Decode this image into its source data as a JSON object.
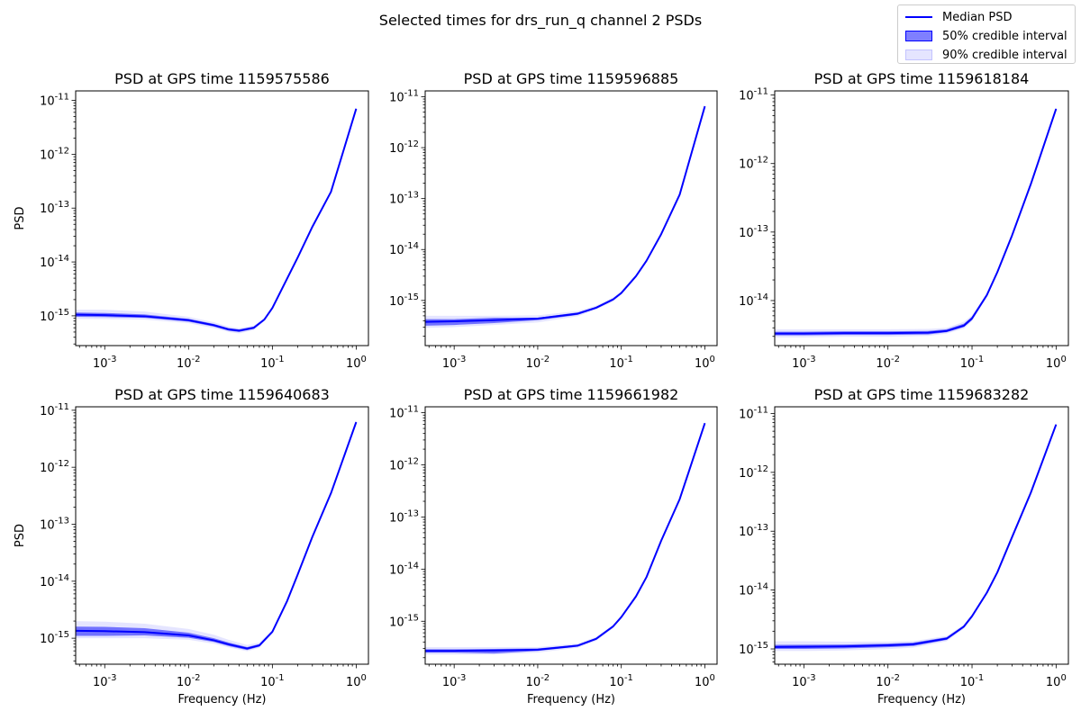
{
  "figure": {
    "suptitle": "Selected times for drs_run_q channel 2 PSDs"
  },
  "legend": {
    "position": "top-right",
    "entries": [
      {
        "label": "Median PSD",
        "kind": "line",
        "color": "#0000ff"
      },
      {
        "label": "50% credible interval",
        "kind": "band",
        "color": "#0000ff",
        "opacity": 0.5
      },
      {
        "label": "90% credible interval",
        "kind": "band",
        "color": "#0000ff",
        "opacity": 0.1
      }
    ]
  },
  "chart_data": [
    {
      "type": "line",
      "title": "PSD at GPS time 1159575586",
      "xlabel": "",
      "ylabel": "PSD",
      "xscale": "log",
      "yscale": "log",
      "xlim": [
        0.00045,
        1.4
      ],
      "ylim": [
        2.8e-16,
        1.5e-11
      ],
      "xticks": [
        "10^-3",
        "10^-2",
        "10^-1",
        "10^0"
      ],
      "yticks": [
        "10^-15",
        "10^-14",
        "10^-13",
        "10^-12",
        "10^-11"
      ],
      "x": [
        0.00045,
        0.001,
        0.003,
        0.01,
        0.02,
        0.03,
        0.04,
        0.06,
        0.08,
        0.1,
        0.2,
        0.3,
        0.5,
        1.0
      ],
      "median": [
        1.05e-15,
        1.03e-15,
        9.8e-16,
        8.3e-16,
        6.7e-16,
        5.6e-16,
        5.3e-16,
        6e-16,
        8.5e-16,
        1.4e-15,
        1.2e-14,
        4.5e-14,
        2e-13,
        7e-12
      ],
      "band50_low": [
        9.6e-16,
        9.5e-16,
        9.2e-16,
        7.8e-16,
        6.3e-16,
        5.3e-16,
        5e-16,
        5.7e-16,
        8.2e-16,
        1.35e-15,
        1.16e-14,
        4.4e-14,
        1.95e-13,
        6.8e-12
      ],
      "band50_high": [
        1.15e-15,
        1.13e-15,
        1.06e-15,
        8.8e-16,
        7.1e-16,
        5.9e-16,
        5.6e-16,
        6.3e-16,
        8.8e-16,
        1.45e-15,
        1.24e-14,
        4.6e-14,
        2.05e-13,
        7.2e-12
      ],
      "band90_low": [
        8.8e-16,
        8.7e-16,
        8.5e-16,
        7.3e-16,
        5.9e-16,
        5e-16,
        4.7e-16,
        5.4e-16,
        7.9e-16,
        1.3e-15,
        1.12e-14,
        4.3e-14,
        1.9e-13,
        6.6e-12
      ],
      "band90_high": [
        1.3e-15,
        1.3e-15,
        1.2e-15,
        9.6e-16,
        7.6e-16,
        6.3e-16,
        5.9e-16,
        6.6e-16,
        9.1e-16,
        1.5e-15,
        1.28e-14,
        4.7e-14,
        2.1e-13,
        7.4e-12
      ]
    },
    {
      "type": "line",
      "title": "PSD at GPS time 1159596885",
      "xlabel": "",
      "ylabel": "",
      "xscale": "log",
      "yscale": "log",
      "xlim": [
        0.00045,
        1.4
      ],
      "ylim": [
        1.3e-16,
        1.3e-11
      ],
      "xticks": [
        "10^-3",
        "10^-2",
        "10^-1",
        "10^0"
      ],
      "yticks": [
        "10^-15",
        "10^-14",
        "10^-13",
        "10^-12",
        "10^-11"
      ],
      "x": [
        0.00045,
        0.001,
        0.003,
        0.01,
        0.03,
        0.05,
        0.08,
        0.1,
        0.15,
        0.2,
        0.3,
        0.5,
        1.0
      ],
      "median": [
        3.8e-16,
        3.9e-16,
        4.1e-16,
        4.4e-16,
        5.5e-16,
        7.2e-16,
        1.05e-15,
        1.4e-15,
        3e-15,
        6e-15,
        2e-14,
        1.2e-13,
        6.5e-12
      ],
      "band50_low": [
        3.2e-16,
        3.3e-16,
        3.6e-16,
        4.1e-16,
        5.2e-16,
        6.9e-16,
        1e-15,
        1.35e-15,
        2.9e-15,
        5.8e-15,
        1.95e-14,
        1.17e-13,
        6.3e-12
      ],
      "band50_high": [
        4.3e-16,
        4.3e-16,
        4.6e-16,
        4.6e-16,
        5.8e-16,
        7.5e-16,
        1.1e-15,
        1.45e-15,
        3.1e-15,
        6.2e-15,
        2.05e-14,
        1.23e-13,
        6.7e-12
      ],
      "band90_low": [
        2.9e-16,
        3e-16,
        3.3e-16,
        3.7e-16,
        4.9e-16,
        6.6e-16,
        9.6e-16,
        1.3e-15,
        2.8e-15,
        5.6e-15,
        1.9e-14,
        1.14e-13,
        6.1e-12
      ],
      "band90_high": [
        5e-16,
        5e-16,
        5e-16,
        5.1e-16,
        6.2e-16,
        7.9e-16,
        1.15e-15,
        1.5e-15,
        3.2e-15,
        6.4e-15,
        2.1e-14,
        1.26e-13,
        6.9e-12
      ]
    },
    {
      "type": "line",
      "title": "PSD at GPS time 1159618184",
      "xlabel": "",
      "ylabel": "",
      "xscale": "log",
      "yscale": "log",
      "xlim": [
        0.00045,
        1.4
      ],
      "ylim": [
        2.2e-15,
        1.15e-11
      ],
      "xticks": [
        "10^-3",
        "10^-2",
        "10^-1",
        "10^0"
      ],
      "yticks": [
        "10^-14",
        "10^-13",
        "10^-12",
        "10^-11"
      ],
      "x": [
        0.00045,
        0.001,
        0.003,
        0.01,
        0.03,
        0.05,
        0.08,
        0.1,
        0.15,
        0.2,
        0.3,
        0.5,
        1.0
      ],
      "median": [
        3.3e-15,
        3.3e-15,
        3.35e-15,
        3.35e-15,
        3.4e-15,
        3.6e-15,
        4.3e-15,
        5.5e-15,
        1.2e-14,
        2.6e-14,
        9e-14,
        5e-13,
        6.3e-12
      ],
      "band50_low": [
        3.1e-15,
        3.1e-15,
        3.15e-15,
        3.15e-15,
        3.2e-15,
        3.45e-15,
        4.1e-15,
        5.2e-15,
        1.16e-14,
        2.5e-14,
        8.8e-14,
        4.9e-13,
        6.1e-12
      ],
      "band50_high": [
        3.5e-15,
        3.5e-15,
        3.55e-15,
        3.55e-15,
        3.6e-15,
        3.8e-15,
        4.6e-15,
        5.8e-15,
        1.24e-14,
        2.7e-14,
        9.2e-14,
        5.1e-13,
        6.5e-12
      ],
      "band90_low": [
        2.9e-15,
        2.9e-15,
        2.95e-15,
        2.95e-15,
        3.05e-15,
        3.3e-15,
        3.9e-15,
        5e-15,
        1.12e-14,
        2.45e-14,
        8.6e-14,
        4.8e-13,
        6e-12
      ],
      "band90_high": [
        3.8e-15,
        3.8e-15,
        3.8e-15,
        3.8e-15,
        3.85e-15,
        4e-15,
        4.9e-15,
        6.1e-15,
        1.28e-14,
        2.75e-14,
        9.4e-14,
        5.2e-13,
        6.6e-12
      ]
    },
    {
      "type": "line",
      "title": "PSD at GPS time 1159640683",
      "xlabel": "Frequency (Hz)",
      "ylabel": "PSD",
      "xscale": "log",
      "yscale": "log",
      "xlim": [
        0.00045,
        1.4
      ],
      "ylim": [
        3.5e-16,
        1.15e-11
      ],
      "xticks": [
        "10^-3",
        "10^-2",
        "10^-1",
        "10^0"
      ],
      "yticks": [
        "10^-15",
        "10^-14",
        "10^-13",
        "10^-12",
        "10^-11"
      ],
      "x": [
        0.00045,
        0.001,
        0.003,
        0.01,
        0.02,
        0.03,
        0.05,
        0.07,
        0.1,
        0.15,
        0.2,
        0.3,
        0.5,
        1.0
      ],
      "median": [
        1.35e-15,
        1.33e-15,
        1.28e-15,
        1.12e-15,
        9.2e-16,
        7.8e-16,
        6.6e-16,
        7.5e-16,
        1.3e-15,
        4.5e-15,
        1.3e-14,
        6e-14,
        3.5e-13,
        6.2e-12
      ],
      "band50_low": [
        1.1e-15,
        1.1e-15,
        1.12e-15,
        1.02e-15,
        8.6e-16,
        7.3e-16,
        6.2e-16,
        7.1e-16,
        1.25e-15,
        4.4e-15,
        1.27e-14,
        5.85e-14,
        3.4e-13,
        6e-12
      ],
      "band50_high": [
        1.6e-15,
        1.58e-15,
        1.5e-15,
        1.25e-15,
        1e-15,
        8.4e-16,
        7e-16,
        7.9e-16,
        1.35e-15,
        4.6e-15,
        1.33e-14,
        6.15e-14,
        3.6e-13,
        6.4e-12
      ],
      "band90_low": [
        1e-15,
        1e-15,
        1e-15,
        9.4e-16,
        8e-16,
        6.9e-16,
        5.9e-16,
        6.8e-16,
        1.2e-15,
        4.3e-15,
        1.24e-14,
        5.7e-14,
        3.3e-13,
        5.8e-12
      ],
      "band90_high": [
        2e-15,
        1.95e-15,
        1.8e-15,
        1.45e-15,
        1.15e-15,
        9.4e-16,
        7.6e-16,
        8.4e-16,
        1.4e-15,
        4.7e-15,
        1.36e-14,
        6.3e-14,
        3.7e-13,
        6.6e-12
      ]
    },
    {
      "type": "line",
      "title": "PSD at GPS time 1159661982",
      "xlabel": "Frequency (Hz)",
      "ylabel": "",
      "xscale": "log",
      "yscale": "log",
      "xlim": [
        0.00045,
        1.4
      ],
      "ylim": [
        1.5e-16,
        1.3e-11
      ],
      "xticks": [
        "10^-3",
        "10^-2",
        "10^-1",
        "10^0"
      ],
      "yticks": [
        "10^-15",
        "10^-14",
        "10^-13",
        "10^-12",
        "10^-11"
      ],
      "x": [
        0.00045,
        0.001,
        0.003,
        0.01,
        0.03,
        0.05,
        0.08,
        0.1,
        0.15,
        0.2,
        0.3,
        0.5,
        1.0
      ],
      "median": [
        2.7e-16,
        2.7e-16,
        2.75e-16,
        2.85e-16,
        3.4e-16,
        4.6e-16,
        8e-16,
        1.2e-15,
        3e-15,
        7e-15,
        3.5e-14,
        2.2e-13,
        6.3e-12
      ],
      "band50_low": [
        2.5e-16,
        2.5e-16,
        2.4e-16,
        2.7e-16,
        3.25e-16,
        4.4e-16,
        7.7e-16,
        1.16e-15,
        2.9e-15,
        6.8e-15,
        3.4e-14,
        2.15e-13,
        6.1e-12
      ],
      "band50_high": [
        2.9e-16,
        2.9e-16,
        2.95e-16,
        3e-16,
        3.55e-16,
        4.8e-16,
        8.3e-16,
        1.24e-15,
        3.1e-15,
        7.2e-15,
        3.6e-14,
        2.25e-13,
        6.5e-12
      ],
      "band90_low": [
        2.3e-16,
        2.3e-16,
        2.3e-16,
        2.5e-16,
        3.1e-16,
        4.2e-16,
        7.4e-16,
        1.12e-15,
        2.8e-15,
        6.6e-15,
        3.3e-14,
        2.1e-13,
        5.9e-12
      ],
      "band90_high": [
        3.2e-16,
        3.2e-16,
        3.2e-16,
        3.2e-16,
        3.75e-16,
        5e-16,
        8.6e-16,
        1.28e-15,
        3.2e-15,
        7.4e-15,
        3.7e-14,
        2.3e-13,
        6.7e-12
      ]
    },
    {
      "type": "line",
      "title": "PSD at GPS time 1159683282",
      "xlabel": "Frequency (Hz)",
      "ylabel": "",
      "xscale": "log",
      "yscale": "log",
      "xlim": [
        0.00045,
        1.4
      ],
      "ylim": [
        5.5e-16,
        1.3e-11
      ],
      "xticks": [
        "10^-3",
        "10^-2",
        "10^-1",
        "10^0"
      ],
      "yticks": [
        "10^-15",
        "10^-14",
        "10^-13",
        "10^-12",
        "10^-11"
      ],
      "x": [
        0.00045,
        0.001,
        0.003,
        0.01,
        0.02,
        0.05,
        0.08,
        0.1,
        0.15,
        0.2,
        0.3,
        0.5,
        1.0
      ],
      "median": [
        1.08e-15,
        1.09e-15,
        1.1e-15,
        1.15e-15,
        1.2e-15,
        1.5e-15,
        2.4e-15,
        3.6e-15,
        9e-15,
        2e-14,
        8e-14,
        4.5e-13,
        6.5e-12
      ],
      "band50_low": [
        1e-15,
        1e-15,
        1.02e-15,
        1.07e-15,
        1.12e-15,
        1.42e-15,
        2.3e-15,
        3.45e-15,
        8.7e-15,
        1.95e-14,
        7.8e-14,
        4.4e-13,
        6.3e-12
      ],
      "band50_high": [
        1.17e-15,
        1.18e-15,
        1.19e-15,
        1.23e-15,
        1.28e-15,
        1.58e-15,
        2.5e-15,
        3.75e-15,
        9.3e-15,
        2.05e-14,
        8.2e-14,
        4.6e-13,
        6.7e-12
      ],
      "band90_low": [
        9.2e-16,
        9.2e-16,
        9.4e-16,
        9.9e-16,
        1.05e-15,
        1.35e-15,
        2.2e-15,
        3.3e-15,
        8.4e-15,
        1.9e-14,
        7.6e-14,
        4.3e-13,
        6.1e-12
      ],
      "band90_high": [
        1.35e-15,
        1.35e-15,
        1.33e-15,
        1.33e-15,
        1.36e-15,
        1.66e-15,
        2.6e-15,
        3.9e-15,
        9.6e-15,
        2.1e-14,
        8.4e-14,
        4.7e-13,
        6.9e-12
      ]
    }
  ]
}
